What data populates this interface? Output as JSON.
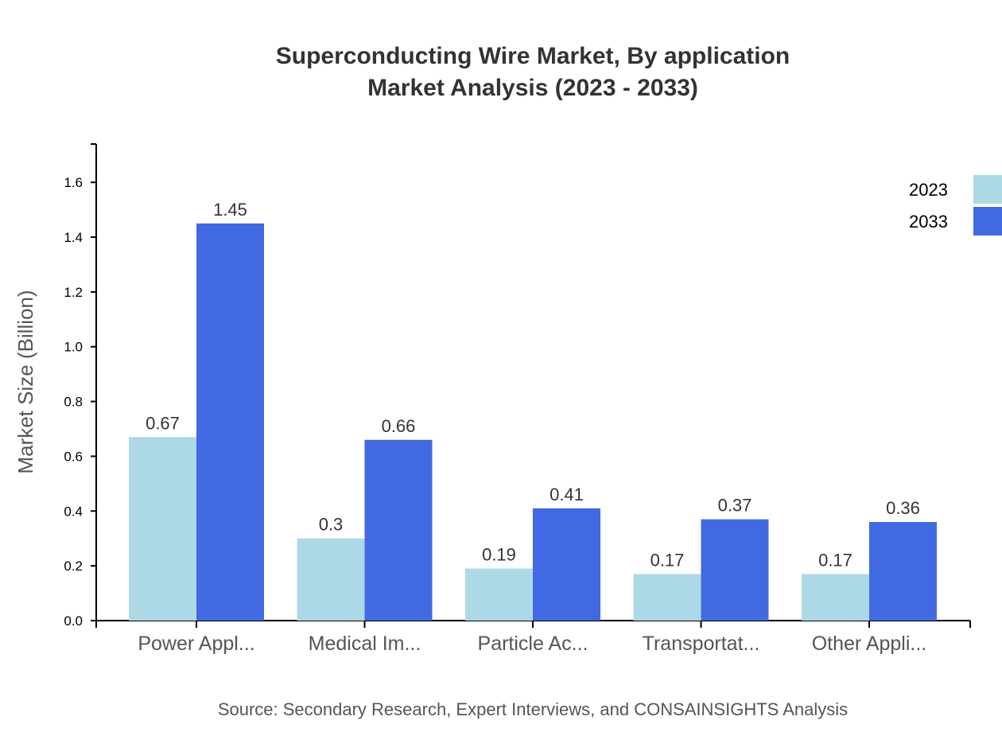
{
  "chart_data": {
    "type": "bar",
    "title": "Superconducting Wire Market, By application",
    "subtitle": "Market Analysis (2023 - 2033)",
    "xlabel": "",
    "ylabel": "Market Size (Billion)",
    "categories": [
      "Power Appl...",
      "Medical Im...",
      "Particle Ac...",
      "Transportat...",
      "Other Appli..."
    ],
    "series": [
      {
        "name": "2023",
        "color": "#add8e6",
        "values": [
          0.67,
          0.3,
          0.19,
          0.17,
          0.17
        ]
      },
      {
        "name": "2033",
        "color": "#4169e1",
        "values": [
          1.45,
          0.66,
          0.41,
          0.37,
          0.36
        ]
      }
    ],
    "ylim": [
      0,
      1.74
    ],
    "yticks": [
      "0.0",
      "0.2",
      "0.4",
      "0.6",
      "0.8",
      "1.0",
      "1.2",
      "1.4",
      "1.6"
    ],
    "grid": false,
    "legend": "top-right",
    "source": "Source: Secondary Research, Expert Interviews, and CONSAINSIGHTS Analysis"
  }
}
